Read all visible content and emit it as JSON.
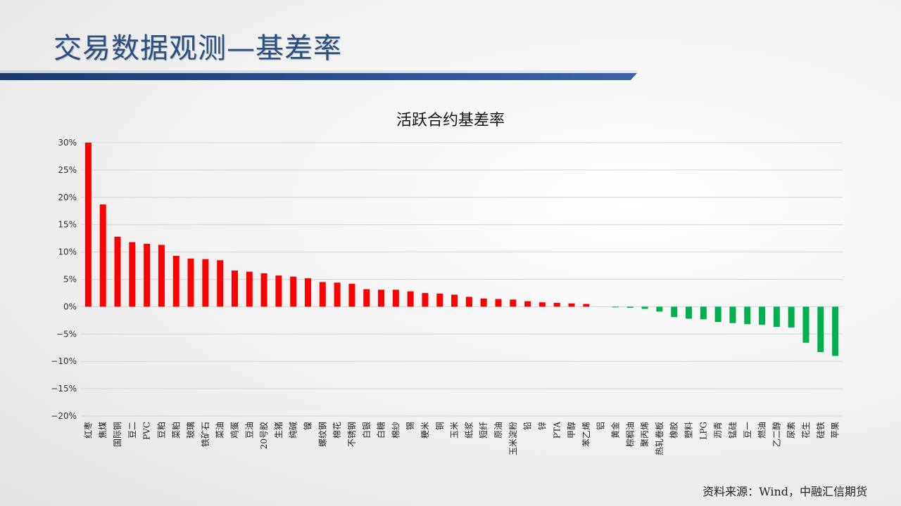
{
  "header": {
    "title": "交易数据观测—基差率"
  },
  "footer": {
    "source": "资料来源：Wind，中融汇信期货"
  },
  "colors": {
    "positive": "#ff0000",
    "negative": "#00b050",
    "title": "#2a4f82"
  },
  "chart_data": {
    "type": "bar",
    "title": "活跃合约基差率",
    "xlabel": "",
    "ylabel": "",
    "ylim": [
      -0.2,
      0.3
    ],
    "yticks": [
      0.3,
      0.25,
      0.2,
      0.15,
      0.1,
      0.05,
      0.0,
      -0.05,
      -0.1,
      -0.15,
      -0.2
    ],
    "ytick_labels": [
      "30%",
      "25%",
      "20%",
      "15%",
      "10%",
      "5%",
      "0%",
      "−5%",
      "−10%",
      "−15%",
      "−20%"
    ],
    "grid": true,
    "legend": "none",
    "categories": [
      "红枣",
      "焦煤",
      "国际铜",
      "豆二",
      "PVC",
      "豆粕",
      "菜粕",
      "玻璃",
      "铁矿石",
      "菜油",
      "鸡蛋",
      "豆油",
      "20号胶",
      "生猪",
      "纯碱",
      "镍",
      "螺纹钢",
      "棉花",
      "不锈钢",
      "白银",
      "白糖",
      "棉纱",
      "锡",
      "粳米",
      "铜",
      "玉米",
      "纸浆",
      "短纤",
      "原油",
      "玉米淀粉",
      "铅",
      "锌",
      "PTA",
      "甲醇",
      "苯乙烯",
      "铝",
      "黄金",
      "棕榈油",
      "聚丙烯",
      "热轧卷板",
      "橡胶",
      "塑料",
      "LPG",
      "沥青",
      "锰硅",
      "豆一",
      "燃油",
      "乙二醇",
      "尿素",
      "花生",
      "硅铁",
      "苹果"
    ],
    "values": [
      0.3,
      0.187,
      0.128,
      0.118,
      0.115,
      0.113,
      0.093,
      0.088,
      0.087,
      0.085,
      0.066,
      0.064,
      0.061,
      0.057,
      0.055,
      0.052,
      0.045,
      0.044,
      0.042,
      0.032,
      0.031,
      0.031,
      0.028,
      0.025,
      0.024,
      0.022,
      0.018,
      0.015,
      0.014,
      0.013,
      0.01,
      0.008,
      0.007,
      0.006,
      0.005,
      0.0,
      -0.001,
      -0.002,
      -0.004,
      -0.009,
      -0.019,
      -0.022,
      -0.023,
      -0.028,
      -0.03,
      -0.032,
      -0.033,
      -0.037,
      -0.038,
      -0.066,
      -0.083,
      -0.09
    ]
  }
}
